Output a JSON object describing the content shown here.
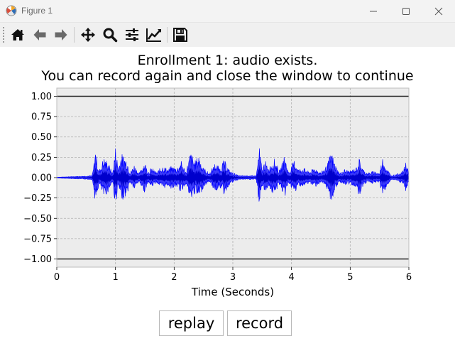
{
  "window": {
    "title": "Figure 1",
    "controls": [
      "minimize-icon",
      "maximize-icon",
      "close-icon"
    ]
  },
  "toolbar": {
    "tools": [
      "home-icon",
      "back-arrow-icon",
      "forward-arrow-icon",
      "pan-icon",
      "zoom-magnifier-icon",
      "subplot-config-icon",
      "edit-axis-icon",
      "save-icon"
    ]
  },
  "figure": {
    "title_line1": "Enrollment 1: audio exists.",
    "title_line2": "You can record again and close the window to continue",
    "buttons": {
      "replay": "replay",
      "record": "record"
    }
  },
  "chart_data": {
    "type": "line",
    "title": "Enrollment 1: audio exists.\nYou can record again and close the window to continue",
    "xlabel": "Time (Seconds)",
    "ylabel": "",
    "xlim": [
      0,
      6
    ],
    "ylim": [
      -1.1,
      1.1
    ],
    "x_ticks": [
      "0",
      "1",
      "2",
      "3",
      "4",
      "5",
      "6"
    ],
    "y_ticks": [
      "1.00",
      "0.75",
      "0.50",
      "0.25",
      "0.00",
      "−0.25",
      "−0.50",
      "−0.75",
      "−1.00"
    ],
    "grid": true,
    "reference_lines": [
      1.0,
      -1.0
    ],
    "series": [
      {
        "color": "#0000ff",
        "envelope": {
          "x": [
            0,
            0.6,
            0.62,
            0.66,
            0.72,
            0.8,
            0.88,
            0.95,
            1.0,
            1.05,
            1.1,
            1.2,
            1.25,
            1.32,
            1.4,
            1.5,
            1.55,
            1.62,
            1.7,
            1.8,
            1.9,
            1.95,
            2.05,
            2.12,
            2.2,
            2.28,
            2.35,
            2.42,
            2.5,
            2.6,
            2.7,
            2.78,
            2.85,
            2.9,
            2.95,
            3.1,
            3.4,
            3.45,
            3.5,
            3.55,
            3.6,
            3.7,
            3.8,
            3.88,
            3.95,
            4.05,
            4.12,
            4.2,
            4.3,
            4.4,
            4.5,
            4.6,
            4.68,
            4.75,
            4.82,
            4.9,
            5.0,
            5.1,
            5.15,
            5.22,
            5.3,
            5.4,
            5.5,
            5.55,
            5.62,
            5.7,
            5.8,
            5.9,
            5.95,
            6.0
          ],
          "amplitude": [
            0.0,
            0.02,
            0.1,
            0.35,
            0.08,
            0.25,
            0.18,
            0.05,
            0.38,
            0.12,
            0.3,
            0.22,
            0.06,
            0.16,
            0.05,
            0.2,
            0.07,
            0.12,
            0.06,
            0.15,
            0.1,
            0.14,
            0.12,
            0.2,
            0.07,
            0.32,
            0.2,
            0.28,
            0.12,
            0.05,
            0.18,
            0.12,
            0.22,
            0.15,
            0.08,
            0.02,
            0.02,
            0.38,
            0.1,
            0.22,
            0.1,
            0.24,
            0.08,
            0.28,
            0.06,
            0.22,
            0.1,
            0.12,
            0.07,
            0.12,
            0.06,
            0.15,
            0.32,
            0.15,
            0.05,
            0.1,
            0.08,
            0.12,
            0.24,
            0.1,
            0.05,
            0.08,
            0.05,
            0.25,
            0.12,
            0.02,
            0.04,
            0.08,
            0.2,
            0.06
          ]
        }
      }
    ]
  }
}
